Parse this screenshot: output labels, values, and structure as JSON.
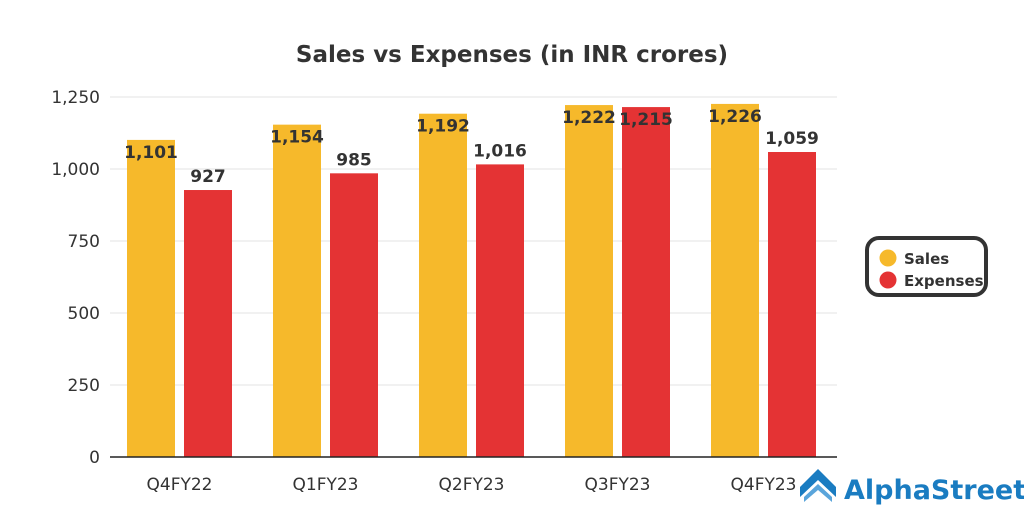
{
  "chart_data": {
    "type": "bar",
    "title": "Sales vs Expenses (in INR crores)",
    "xlabel": "",
    "ylabel": "",
    "ylim": [
      0,
      1250
    ],
    "yticks": [
      0,
      250,
      500,
      750,
      1000,
      1250
    ],
    "ytick_labels": [
      "0",
      "250",
      "500",
      "750",
      "1,000",
      "1,250"
    ],
    "grid": true,
    "legend_position": "right",
    "categories": [
      "Q4FY22",
      "Q1FY23",
      "Q2FY23",
      "Q3FY23",
      "Q4FY23"
    ],
    "series": [
      {
        "name": "Sales",
        "color": "#f6b92b",
        "values": [
          1101,
          1154,
          1192,
          1222,
          1226
        ],
        "labels": [
          "1,101",
          "1,154",
          "1,192",
          "1,222",
          "1,226"
        ]
      },
      {
        "name": "Expenses",
        "color": "#e43334",
        "values": [
          927,
          985,
          1016,
          1215,
          1059
        ],
        "labels": [
          "927",
          "985",
          "1,016",
          "1,215",
          "1,059"
        ]
      }
    ]
  },
  "branding": {
    "logo_text": "AlphaStreet",
    "logo_color": "#1a7cc1"
  }
}
